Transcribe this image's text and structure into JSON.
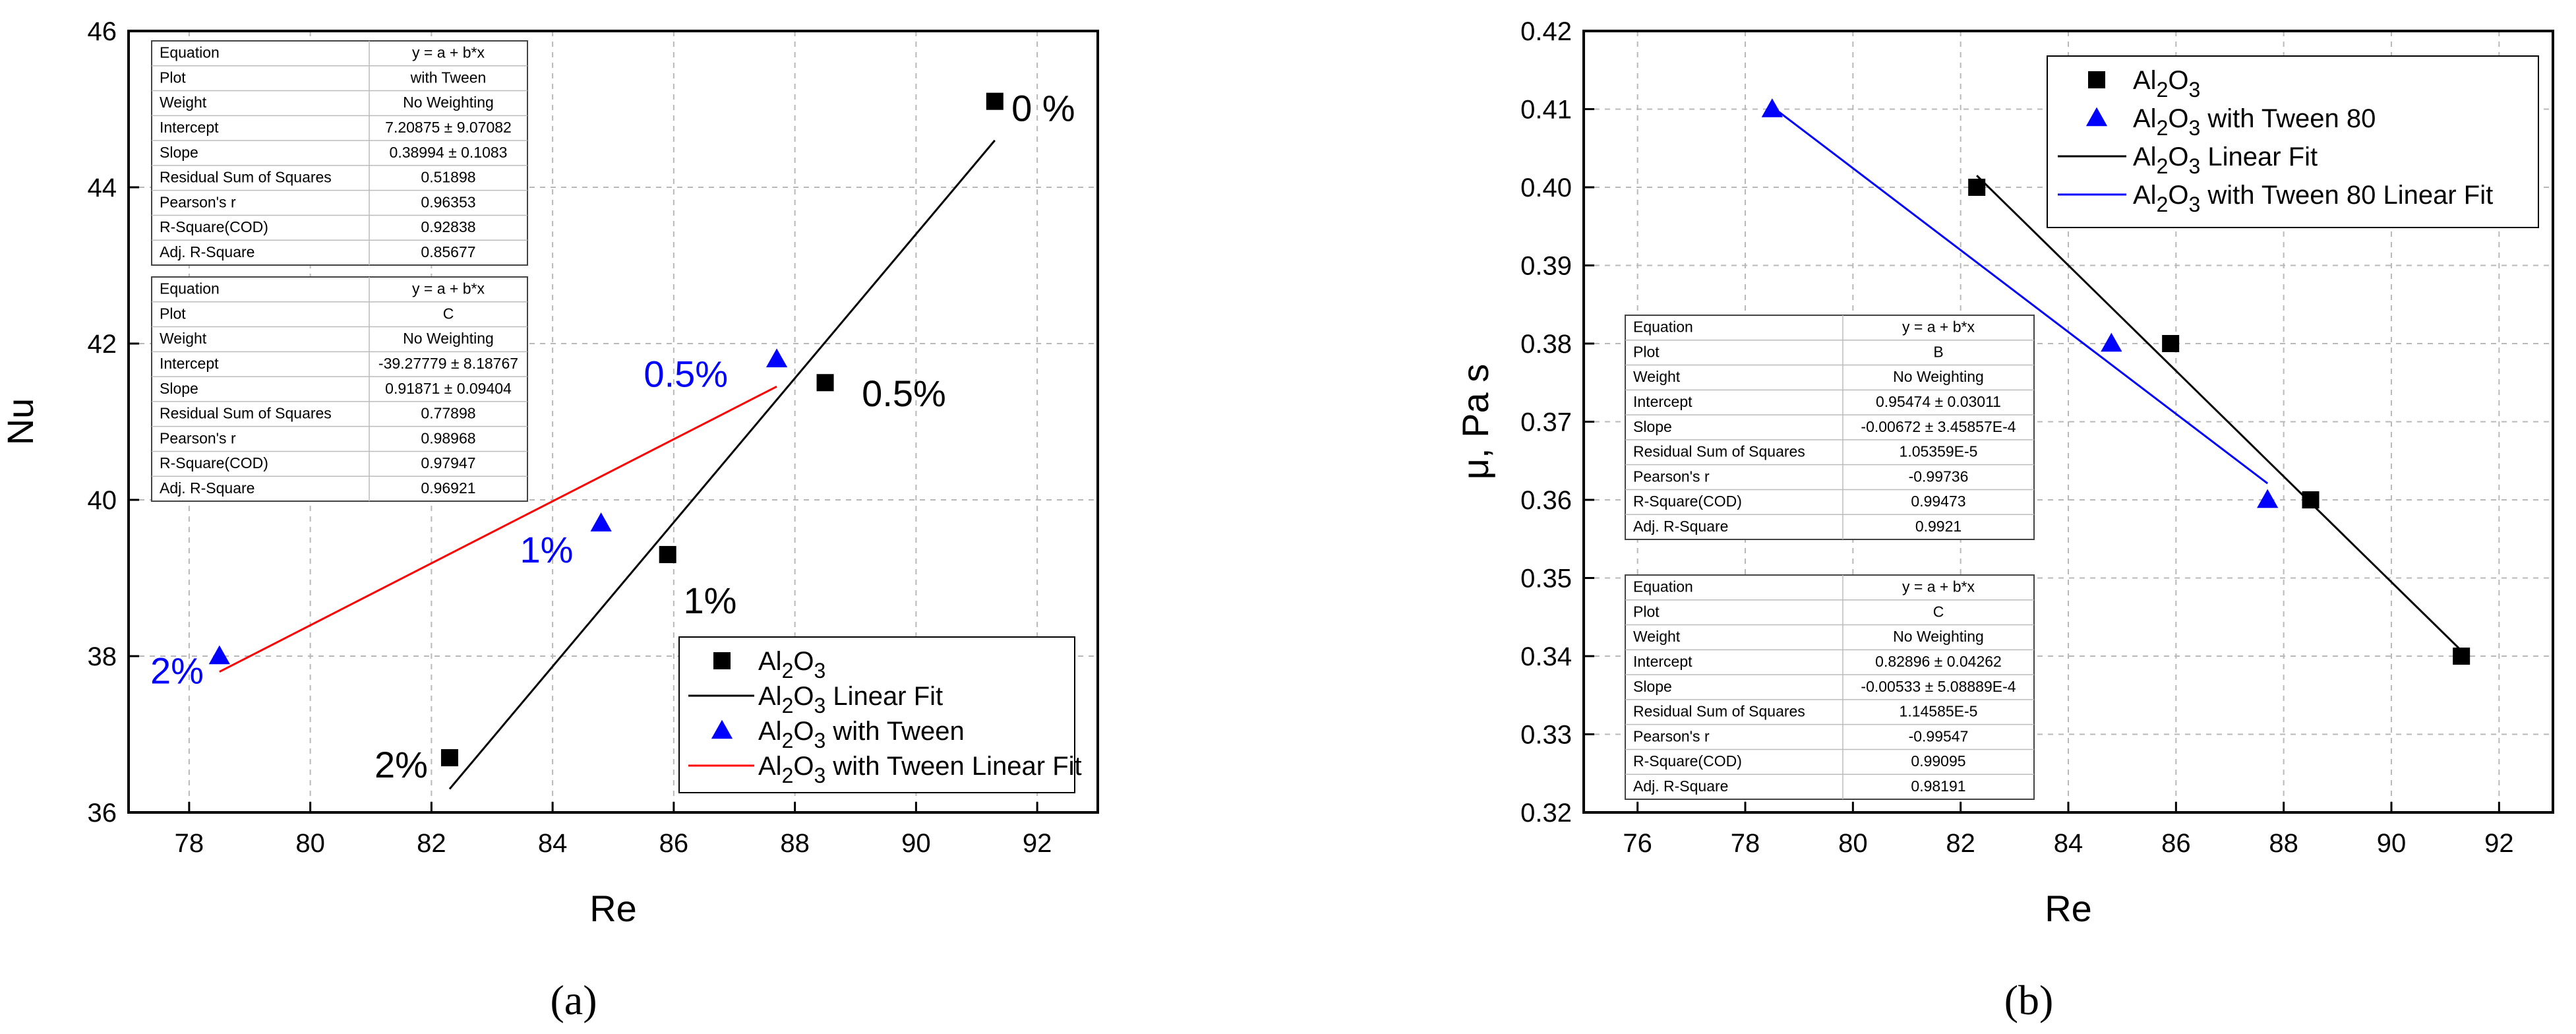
{
  "chart_data": [
    {
      "id": "a",
      "type": "scatter",
      "caption": "(a)",
      "xlabel": "Re",
      "ylabel": "Nu",
      "xlim": [
        77,
        93
      ],
      "ylim": [
        36,
        46
      ],
      "xticks": [
        78,
        80,
        82,
        84,
        86,
        88,
        90,
        92
      ],
      "yticks": [
        36,
        38,
        40,
        42,
        44,
        46
      ],
      "grid": true,
      "series": [
        {
          "name": "Al2O3",
          "marker": "square",
          "color": "#000000",
          "x": [
            82.3,
            85.9,
            88.5,
            91.3
          ],
          "y": [
            36.7,
            39.3,
            41.5,
            45.1
          ]
        },
        {
          "name": "Al2O3 Linear Fit",
          "kind": "fit",
          "color": "#000000",
          "x": [
            82.3,
            91.3
          ],
          "y": [
            36.3,
            44.6
          ]
        },
        {
          "name": "Al2O3 with Tween",
          "marker": "triangle",
          "color": "#0000ff",
          "x": [
            78.5,
            84.8,
            87.7
          ],
          "y": [
            38.0,
            39.7,
            41.8
          ]
        },
        {
          "name": "Al2O3 with Tween Linear Fit",
          "kind": "fit",
          "color": "#ff0000",
          "x": [
            78.5,
            87.7
          ],
          "y": [
            37.8,
            41.45
          ]
        }
      ],
      "annotations": [
        {
          "text": "0 %",
          "x": 92.1,
          "y": 45.0,
          "color": "#000000"
        },
        {
          "text": "0.5%",
          "x": 89.8,
          "y": 41.35,
          "color": "#000000"
        },
        {
          "text": "1%",
          "x": 86.6,
          "y": 38.7,
          "color": "#000000"
        },
        {
          "text": "2%",
          "x": 81.5,
          "y": 36.6,
          "color": "#000000"
        },
        {
          "text": "0.5%",
          "x": 86.2,
          "y": 41.6,
          "color": "#0000ff"
        },
        {
          "text": "1%",
          "x": 83.9,
          "y": 39.35,
          "color": "#0000ff"
        },
        {
          "text": "2%",
          "x": 77.8,
          "y": 37.8,
          "color": "#0000ff"
        }
      ],
      "stat_tables": [
        [
          [
            "Equation",
            "y = a + b*x"
          ],
          [
            "Plot",
            "with Tween"
          ],
          [
            "Weight",
            "No Weighting"
          ],
          [
            "Intercept",
            "7.20875 ± 9.07082"
          ],
          [
            "Slope",
            "0.38994 ± 0.1083"
          ],
          [
            "Residual Sum of Squares",
            "0.51898"
          ],
          [
            "Pearson's r",
            "0.96353"
          ],
          [
            "R-Square(COD)",
            "0.92838"
          ],
          [
            "Adj. R-Square",
            "0.85677"
          ]
        ],
        [
          [
            "Equation",
            "y = a + b*x"
          ],
          [
            "Plot",
            "C"
          ],
          [
            "Weight",
            "No Weighting"
          ],
          [
            "Intercept",
            "-39.27779 ± 8.18767"
          ],
          [
            "Slope",
            "0.91871 ± 0.09404"
          ],
          [
            "Residual Sum of Squares",
            "0.77898"
          ],
          [
            "Pearson's r",
            "0.98968"
          ],
          [
            "R-Square(COD)",
            "0.97947"
          ],
          [
            "Adj. R-Square",
            "0.96921"
          ]
        ]
      ],
      "legend": {
        "placement": "bottom-right"
      }
    },
    {
      "id": "b",
      "type": "scatter",
      "caption": "(b)",
      "xlabel": "Re",
      "ylabel": "μ, Pa s",
      "xlim": [
        75,
        93
      ],
      "ylim": [
        0.32,
        0.42
      ],
      "xticks": [
        76,
        78,
        80,
        82,
        84,
        86,
        88,
        90,
        92
      ],
      "yticks": [
        0.32,
        0.33,
        0.34,
        0.35,
        0.36,
        0.37,
        0.38,
        0.39,
        0.4,
        0.41,
        0.42
      ],
      "grid": true,
      "series": [
        {
          "name": "Al2O3",
          "marker": "square",
          "color": "#000000",
          "x": [
            82.3,
            85.9,
            88.5,
            91.3
          ],
          "y": [
            0.4,
            0.38,
            0.36,
            0.34
          ]
        },
        {
          "name": "Al2O3 with Tween 80",
          "marker": "triangle",
          "color": "#0000ff",
          "x": [
            78.5,
            84.8,
            87.7
          ],
          "y": [
            0.41,
            0.38,
            0.36
          ]
        },
        {
          "name": "Al2O3 Linear Fit",
          "kind": "fit",
          "color": "#000000",
          "x": [
            82.3,
            91.3
          ],
          "y": [
            0.4015,
            0.3407
          ]
        },
        {
          "name": "Al2O3 with Tween 80 Linear Fit",
          "kind": "fit",
          "color": "#0000ff",
          "x": [
            78.5,
            87.7
          ],
          "y": [
            0.4103,
            0.3621
          ]
        }
      ],
      "stat_tables": [
        [
          [
            "Equation",
            "y = a + b*x"
          ],
          [
            "Plot",
            "B"
          ],
          [
            "Weight",
            "No Weighting"
          ],
          [
            "Intercept",
            "0.95474 ± 0.03011"
          ],
          [
            "Slope",
            "-0.00672 ± 3.45857E-4"
          ],
          [
            "Residual Sum of Squares",
            "1.05359E-5"
          ],
          [
            "Pearson's r",
            "-0.99736"
          ],
          [
            "R-Square(COD)",
            "0.99473"
          ],
          [
            "Adj. R-Square",
            "0.9921"
          ]
        ],
        [
          [
            "Equation",
            "y = a + b*x"
          ],
          [
            "Plot",
            "C"
          ],
          [
            "Weight",
            "No Weighting"
          ],
          [
            "Intercept",
            "0.82896 ± 0.04262"
          ],
          [
            "Slope",
            "-0.00533 ± 5.08889E-4"
          ],
          [
            "Residual Sum of Squares",
            "1.14585E-5"
          ],
          [
            "Pearson's r",
            "-0.99547"
          ],
          [
            "R-Square(COD)",
            "0.99095"
          ],
          [
            "Adj. R-Square",
            "0.98191"
          ]
        ]
      ],
      "legend": {
        "placement": "top-right"
      }
    }
  ]
}
